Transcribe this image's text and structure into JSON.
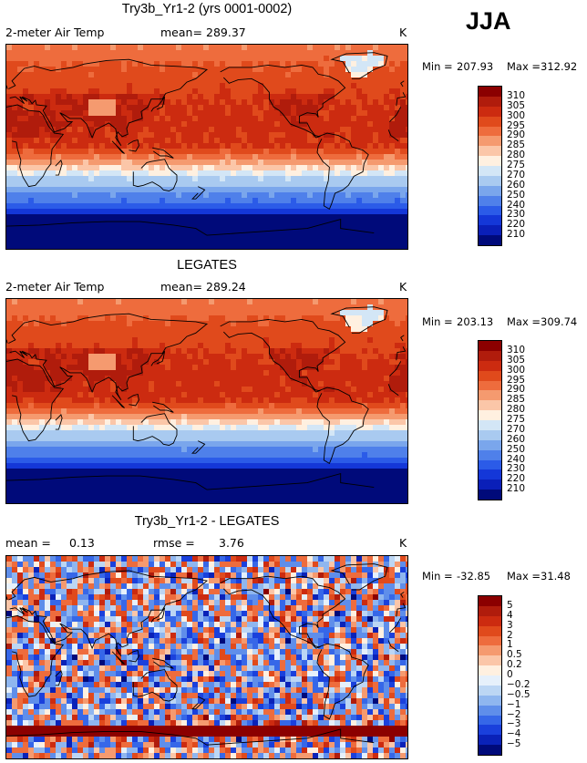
{
  "season": "JJA",
  "panels": [
    {
      "title": "Try3b_Yr1-2 (yrs 0001-0002)",
      "left_label": "2-meter Air Temp",
      "stat1_label": "mean=",
      "stat1_value": "289.37",
      "stat2_label": "",
      "stat2_value": "",
      "units": "K",
      "min_label": "Min =",
      "min_value": "207.93",
      "max_label": "Max =",
      "max_value": "312.92",
      "field": "model"
    },
    {
      "title": "LEGATES",
      "left_label": "2-meter Air Temp",
      "stat1_label": "mean=",
      "stat1_value": "289.24",
      "stat2_label": "",
      "stat2_value": "",
      "units": "K",
      "min_label": "Min =",
      "min_value": "203.13",
      "max_label": "Max =",
      "max_value": "309.74",
      "field": "obs"
    },
    {
      "title": "Try3b_Yr1-2 - LEGATES",
      "left_label": "",
      "stat1_label": "mean =",
      "stat1_value": "0.13",
      "stat2_label": "rmse =",
      "stat2_value": "3.76",
      "units": "K",
      "min_label": "Min =",
      "min_value": "-32.85",
      "max_label": "Max =",
      "max_value": "31.48",
      "field": "diff"
    }
  ],
  "colorbars": {
    "temperature": {
      "levels": [
        "310",
        "305",
        "300",
        "295",
        "290",
        "285",
        "280",
        "275",
        "270",
        "260",
        "250",
        "240",
        "230",
        "220",
        "210"
      ],
      "colors": [
        "#8b0000",
        "#b01c0c",
        "#cc2b10",
        "#e04a1c",
        "#ee6c3d",
        "#f59a6f",
        "#fbc6a8",
        "#fff0e0",
        "#d3e6f6",
        "#a9caf0",
        "#7aa6ec",
        "#4f80ea",
        "#2b5be8",
        "#1437d8",
        "#0a1fb8",
        "#000a7a"
      ]
    },
    "difference": {
      "levels": [
        "5",
        "4",
        "3",
        "2",
        "1",
        "0.5",
        "0.2",
        "0",
        "−0.2",
        "−0.5",
        "−1",
        "−2",
        "−3",
        "−4",
        "−5"
      ],
      "colors": [
        "#8b0000",
        "#b01c0c",
        "#cc2b10",
        "#e04a1c",
        "#ee6c3d",
        "#f59a6f",
        "#fbc6a8",
        "#fff0e0",
        "#e6f0fb",
        "#bcd6f4",
        "#8fb6ef",
        "#5f8eea",
        "#3667e8",
        "#1a40dc",
        "#0a22b8",
        "#000a7a"
      ]
    }
  },
  "chart_data": [
    {
      "type": "heatmap",
      "title": "Try3b_Yr1-2 (yrs 0001-0002)",
      "variable": "2-meter Air Temp",
      "units": "K",
      "mean": 289.37,
      "min": 207.93,
      "max": 312.92,
      "contour_levels": [
        210,
        220,
        230,
        240,
        250,
        260,
        270,
        275,
        280,
        285,
        290,
        295,
        300,
        305,
        310
      ],
      "lat_range": [
        -90,
        90
      ],
      "lon_range": [
        0,
        360
      ]
    },
    {
      "type": "heatmap",
      "title": "LEGATES",
      "variable": "2-meter Air Temp",
      "units": "K",
      "mean": 289.24,
      "min": 203.13,
      "max": 309.74,
      "contour_levels": [
        210,
        220,
        230,
        240,
        250,
        260,
        270,
        275,
        280,
        285,
        290,
        295,
        300,
        305,
        310
      ],
      "lat_range": [
        -90,
        90
      ],
      "lon_range": [
        0,
        360
      ]
    },
    {
      "type": "heatmap",
      "title": "Try3b_Yr1-2 - LEGATES",
      "units": "K",
      "mean": 0.13,
      "rmse": 3.76,
      "min": -32.85,
      "max": 31.48,
      "contour_levels": [
        -5,
        -4,
        -3,
        -2,
        -1,
        -0.5,
        -0.2,
        0,
        0.2,
        0.5,
        1,
        2,
        3,
        4,
        5
      ],
      "lat_range": [
        -90,
        90
      ],
      "lon_range": [
        0,
        360
      ]
    }
  ]
}
